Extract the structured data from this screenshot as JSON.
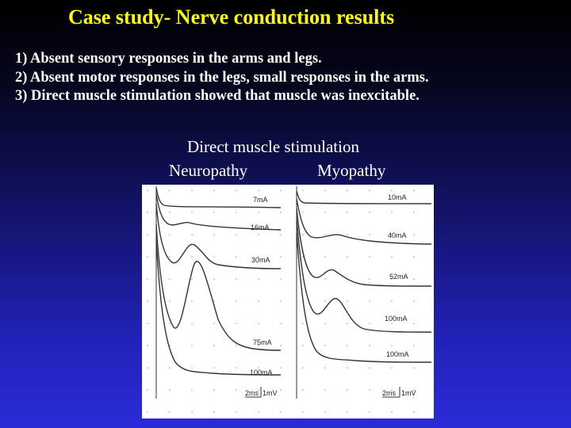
{
  "slide": {
    "title": "Case study- Nerve conduction results",
    "points": [
      "1) Absent sensory responses in the arms and legs.",
      "2) Absent motor responses in the legs, small responses in the arms.",
      "3) Direct muscle stimulation showed that muscle was inexcitable."
    ],
    "figure_heading": "Direct muscle stimulation",
    "columns": [
      "Neuropathy",
      "Myopathy"
    ]
  },
  "traces": {
    "neuropathy": [
      "7mA",
      "16mA",
      "30mA",
      "75mA",
      "100mA"
    ],
    "myopathy": [
      "10mA",
      "40mA",
      "52mA",
      "100mA",
      "100mA"
    ]
  },
  "scale": {
    "time": "2ms",
    "amplitude": "1mV"
  }
}
